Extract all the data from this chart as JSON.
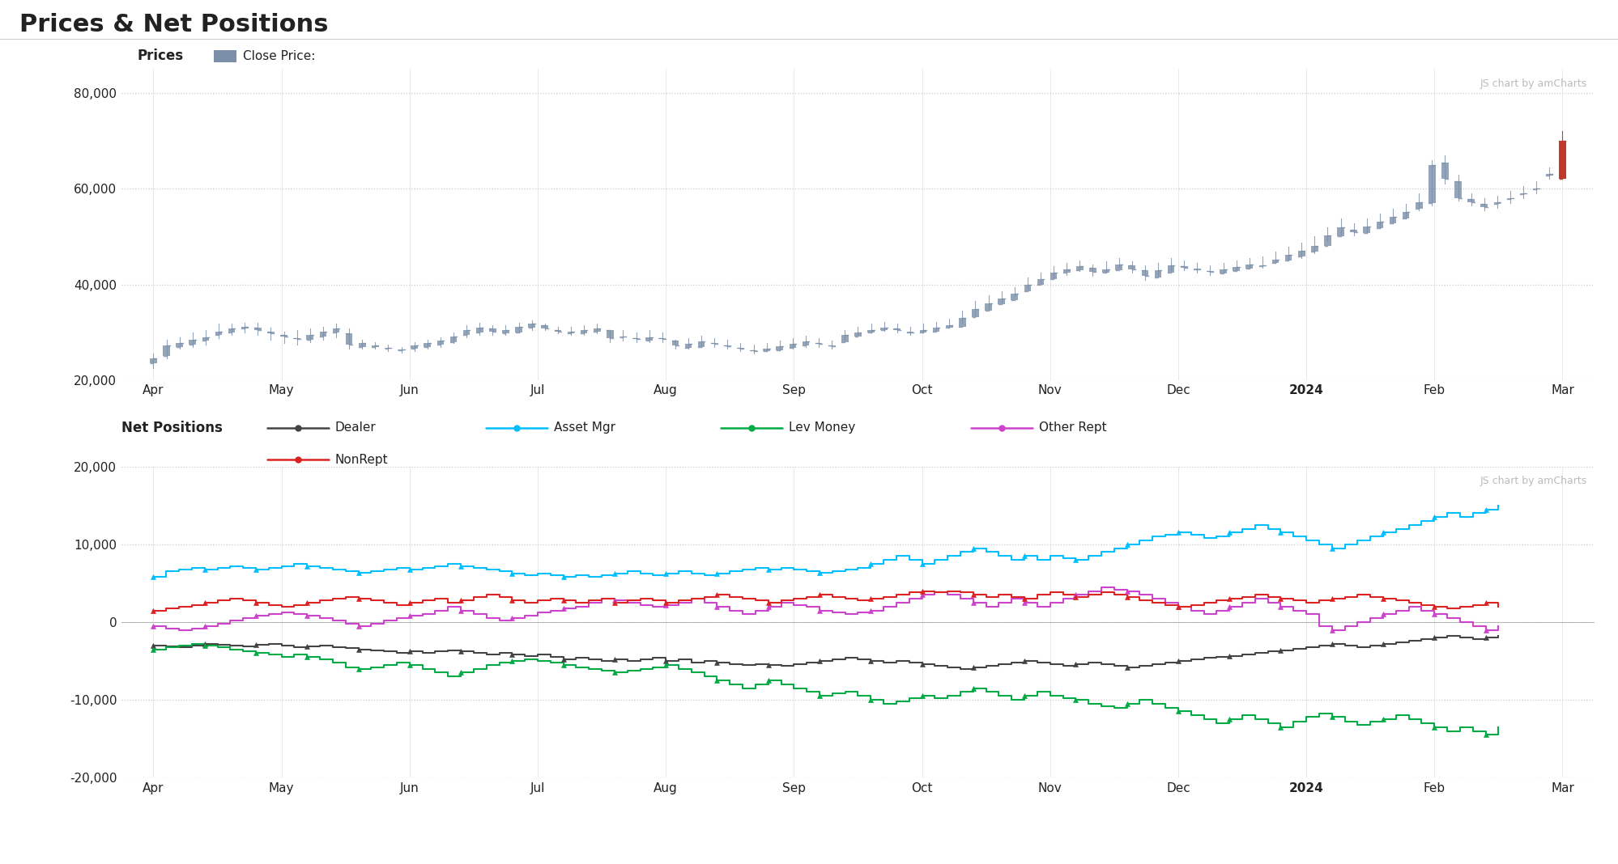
{
  "title": "Prices & Net Positions",
  "background_color": "#ffffff",
  "title_fontsize": 22,
  "top_legend_label": "Prices",
  "top_legend_item": "Close Price:",
  "top_legend_color": "#7b8fa8",
  "watermark": "JS chart by amCharts",
  "x_months": [
    "Apr",
    "May",
    "Jun",
    "Jul",
    "Aug",
    "Sep",
    "Oct",
    "Nov",
    "Dec",
    "2024",
    "Feb",
    "Mar"
  ],
  "x_months_bold": [
    "2024"
  ],
  "price_ylim": [
    20000,
    85000
  ],
  "price_yticks": [
    20000,
    40000,
    60000,
    80000
  ],
  "price_close": [
    24500,
    27200,
    27800,
    28500,
    29000,
    30200,
    30800,
    31200,
    30500,
    29800,
    29200,
    28600,
    29500,
    30200,
    30800,
    27500,
    27800,
    27200,
    26800,
    26400,
    27200,
    27800,
    28200,
    29100,
    30500,
    31000,
    30200,
    30500,
    31200,
    31800,
    30800,
    30200,
    30100,
    30500,
    30800,
    28800,
    29100,
    28600,
    29000,
    28600,
    27200,
    27600,
    28100,
    27600,
    27100,
    26600,
    26100,
    26600,
    27100,
    27600,
    28100,
    27600,
    27100,
    29500,
    30000,
    30500,
    31000,
    30500,
    30000,
    30500,
    31000,
    31500,
    33000,
    34800,
    36000,
    37000,
    38000,
    40000,
    41200,
    42500,
    43200,
    43800,
    42600,
    43200,
    44100,
    43200,
    41800,
    43000,
    44000,
    43500,
    43100,
    42600,
    43100,
    43600,
    44100,
    44000,
    45200,
    46200,
    47000,
    48100,
    50200,
    52000,
    51000,
    52100,
    53100,
    54100,
    55100,
    57200,
    65000,
    62000,
    58100,
    57100,
    56100,
    57100,
    58100,
    59100,
    60100,
    63100,
    70000
  ],
  "price_open": [
    23500,
    25000,
    27000,
    27500,
    28200,
    29500,
    30000,
    30800,
    31000,
    30200,
    29500,
    28800,
    28500,
    29200,
    30000,
    29800,
    27000,
    27000,
    26500,
    26200,
    26500,
    27000,
    27500,
    28000,
    29500,
    30000,
    30800,
    29800,
    30000,
    31000,
    31500,
    30500,
    29800,
    29800,
    30200,
    30500,
    29000,
    28800,
    28200,
    28800,
    28200,
    26800,
    27000,
    27800,
    27200,
    26800,
    26200,
    26000,
    26300,
    26800,
    27300,
    27800,
    27300,
    28000,
    29200,
    30000,
    30500,
    30800,
    30000,
    30000,
    30200,
    31000,
    31200,
    33200,
    34500,
    35800,
    36800,
    38500,
    40000,
    41200,
    42500,
    43000,
    43500,
    42400,
    43000,
    44000,
    43000,
    41500,
    42500,
    43800,
    43200,
    42800,
    42300,
    42800,
    43300,
    43800,
    44500,
    45000,
    45800,
    46800,
    48000,
    50000,
    51500,
    50800,
    51800,
    52800,
    53800,
    55800,
    57000,
    65500,
    61500,
    57800,
    56800,
    56800,
    57800,
    58800,
    59800,
    62800,
    62000
  ],
  "price_high": [
    25500,
    28500,
    29000,
    30000,
    30500,
    31800,
    31800,
    32000,
    32000,
    31000,
    30200,
    30500,
    30800,
    31200,
    31800,
    30800,
    28500,
    28000,
    27500,
    27000,
    28000,
    28500,
    29000,
    30000,
    31500,
    32000,
    31500,
    31500,
    32000,
    32500,
    31800,
    31200,
    31200,
    31500,
    31800,
    30200,
    30500,
    30000,
    30500,
    30000,
    28500,
    28800,
    29300,
    28800,
    28500,
    27800,
    27500,
    27800,
    28300,
    28800,
    29300,
    28800,
    28300,
    30500,
    31200,
    31800,
    32200,
    31800,
    31200,
    31800,
    32200,
    32800,
    34500,
    36500,
    37800,
    38500,
    39500,
    41500,
    42500,
    43800,
    44500,
    45000,
    44200,
    44800,
    45500,
    44800,
    44000,
    44500,
    45500,
    45000,
    44500,
    44000,
    44500,
    45000,
    45500,
    45800,
    46800,
    47800,
    48800,
    50000,
    52000,
    53800,
    52800,
    53800,
    54800,
    55800,
    56800,
    59000,
    66000,
    67000,
    63000,
    59000,
    58000,
    58500,
    59500,
    60500,
    61500,
    64500,
    72000
  ],
  "price_low": [
    22500,
    24500,
    26500,
    27000,
    27500,
    28800,
    29500,
    30000,
    29500,
    28500,
    27800,
    27500,
    28000,
    28500,
    29000,
    26500,
    26500,
    26500,
    26000,
    25800,
    26000,
    26500,
    27000,
    27800,
    29000,
    29500,
    29500,
    29500,
    30000,
    30500,
    30500,
    29800,
    29500,
    29500,
    29800,
    28000,
    28200,
    28000,
    28000,
    28000,
    26500,
    26500,
    27000,
    27000,
    26500,
    26000,
    25500,
    26000,
    26200,
    26500,
    27000,
    27000,
    26500,
    28500,
    29500,
    30000,
    30300,
    30000,
    29500,
    30000,
    30500,
    31000,
    32000,
    33500,
    34800,
    36200,
    37500,
    39000,
    40200,
    41500,
    42000,
    42800,
    41800,
    42500,
    43500,
    42500,
    41000,
    42000,
    43000,
    43000,
    42500,
    42000,
    42500,
    43000,
    43500,
    43500,
    44500,
    45000,
    45500,
    46500,
    49000,
    50500,
    50200,
    50800,
    51800,
    52800,
    53800,
    55500,
    56500,
    61000,
    57500,
    56500,
    55500,
    56000,
    57000,
    58000,
    59000,
    62000,
    63000
  ],
  "price_bar_color_normal": "#7b8fa8",
  "price_bar_color_last": "#c0392b",
  "net_ylim": [
    -20000,
    20000
  ],
  "net_yticks": [
    -20000,
    -10000,
    0,
    10000,
    20000
  ],
  "net_x": [
    0,
    0.1,
    0.2,
    0.3,
    0.4,
    0.5,
    0.6,
    0.7,
    0.8,
    0.9,
    1.0,
    1.1,
    1.2,
    1.3,
    1.4,
    1.5,
    1.6,
    1.7,
    1.8,
    1.9,
    2.0,
    2.1,
    2.2,
    2.3,
    2.4,
    2.5,
    2.6,
    2.7,
    2.8,
    2.9,
    3.0,
    3.1,
    3.2,
    3.3,
    3.4,
    3.5,
    3.6,
    3.7,
    3.8,
    3.9,
    4.0,
    4.1,
    4.2,
    4.3,
    4.4,
    4.5,
    4.6,
    4.7,
    4.8,
    4.9,
    5.0,
    5.1,
    5.2,
    5.3,
    5.4,
    5.5,
    5.6,
    5.7,
    5.8,
    5.9,
    6.0,
    6.1,
    6.2,
    6.3,
    6.4,
    6.5,
    6.6,
    6.7,
    6.8,
    6.9,
    7.0,
    7.1,
    7.2,
    7.3,
    7.4,
    7.5,
    7.6,
    7.7,
    7.8,
    7.9,
    8.0,
    8.1,
    8.2,
    8.3,
    8.4,
    8.5,
    8.6,
    8.7,
    8.8,
    8.9,
    9.0,
    9.1,
    9.2,
    9.3,
    9.4,
    9.5,
    9.6,
    9.7,
    9.8,
    9.9,
    10.0,
    10.1,
    10.2,
    10.3,
    10.4,
    10.5
  ],
  "dealer": [
    -3000,
    -3100,
    -3200,
    -3000,
    -2800,
    -2900,
    -3000,
    -3100,
    -2900,
    -2800,
    -3000,
    -3200,
    -3100,
    -3000,
    -3200,
    -3300,
    -3500,
    -3600,
    -3800,
    -4000,
    -3800,
    -4000,
    -3800,
    -3600,
    -3800,
    -4000,
    -4200,
    -4000,
    -4200,
    -4400,
    -4200,
    -4500,
    -4800,
    -4600,
    -4800,
    -5000,
    -4800,
    -5000,
    -4800,
    -4600,
    -5000,
    -4800,
    -5200,
    -5000,
    -5200,
    -5400,
    -5500,
    -5400,
    -5500,
    -5600,
    -5400,
    -5200,
    -5000,
    -4800,
    -4600,
    -4800,
    -5000,
    -5200,
    -5000,
    -5200,
    -5400,
    -5600,
    -5800,
    -6000,
    -5800,
    -5600,
    -5400,
    -5200,
    -5000,
    -5200,
    -5400,
    -5600,
    -5400,
    -5200,
    -5400,
    -5600,
    -5800,
    -5600,
    -5400,
    -5200,
    -5000,
    -4800,
    -4600,
    -4500,
    -4400,
    -4200,
    -4000,
    -3800,
    -3600,
    -3400,
    -3200,
    -3000,
    -2800,
    -3000,
    -3200,
    -3000,
    -2800,
    -2600,
    -2400,
    -2200,
    -2000,
    -1800,
    -2000,
    -2200,
    -2000,
    -1800
  ],
  "asset_mgr": [
    5800,
    6500,
    6800,
    7000,
    6800,
    7000,
    7200,
    7000,
    6800,
    7000,
    7200,
    7500,
    7200,
    7000,
    6800,
    6500,
    6300,
    6500,
    6800,
    7000,
    6800,
    7000,
    7200,
    7500,
    7200,
    7000,
    6800,
    6500,
    6200,
    6000,
    6200,
    6000,
    5800,
    6000,
    5800,
    6000,
    6200,
    6500,
    6200,
    6000,
    6200,
    6500,
    6200,
    6000,
    6200,
    6500,
    6800,
    7000,
    6800,
    7000,
    6800,
    6500,
    6300,
    6500,
    6800,
    7000,
    7500,
    8000,
    8500,
    8000,
    7500,
    8000,
    8500,
    9000,
    9500,
    9000,
    8500,
    8000,
    8500,
    8000,
    8500,
    8200,
    8000,
    8500,
    9000,
    9500,
    10000,
    10500,
    11000,
    11200,
    11500,
    11200,
    10800,
    11000,
    11500,
    12000,
    12500,
    12000,
    11500,
    11000,
    10500,
    10000,
    9500,
    10000,
    10500,
    11000,
    11500,
    12000,
    12500,
    13000,
    13500,
    14000,
    13500,
    14000,
    14500,
    15000
  ],
  "lev_money": [
    -3500,
    -3200,
    -3000,
    -2800,
    -3000,
    -3200,
    -3500,
    -3800,
    -4000,
    -4200,
    -4500,
    -4200,
    -4500,
    -4800,
    -5200,
    -5800,
    -6000,
    -5800,
    -5500,
    -5200,
    -5500,
    -6000,
    -6500,
    -7000,
    -6500,
    -6000,
    -5500,
    -5200,
    -5000,
    -4800,
    -5000,
    -5200,
    -5500,
    -5800,
    -6000,
    -6200,
    -6500,
    -6200,
    -6000,
    -5800,
    -5500,
    -6000,
    -6500,
    -7000,
    -7500,
    -8000,
    -8500,
    -8000,
    -7500,
    -8000,
    -8500,
    -9000,
    -9500,
    -9200,
    -9000,
    -9500,
    -10000,
    -10500,
    -10200,
    -9800,
    -9500,
    -9800,
    -9500,
    -9000,
    -8500,
    -9000,
    -9500,
    -10000,
    -9500,
    -9000,
    -9500,
    -9800,
    -10000,
    -10500,
    -10800,
    -11000,
    -10500,
    -10000,
    -10500,
    -11000,
    -11500,
    -12000,
    -12500,
    -13000,
    -12500,
    -12000,
    -12500,
    -13000,
    -13500,
    -12800,
    -12200,
    -11800,
    -12200,
    -12800,
    -13200,
    -12800,
    -12500,
    -12000,
    -12500,
    -13000,
    -13500,
    -14000,
    -13500,
    -14000,
    -14500,
    -13500
  ],
  "other_rept": [
    -500,
    -800,
    -1000,
    -800,
    -500,
    -200,
    200,
    500,
    800,
    1000,
    1200,
    1000,
    800,
    500,
    200,
    -200,
    -500,
    -200,
    200,
    500,
    800,
    1000,
    1500,
    2000,
    1500,
    1000,
    500,
    200,
    500,
    800,
    1200,
    1500,
    1800,
    2000,
    2500,
    3000,
    2800,
    2500,
    2200,
    2000,
    2200,
    2500,
    3000,
    2500,
    2000,
    1500,
    1000,
    1500,
    2000,
    2500,
    2200,
    2000,
    1500,
    1200,
    1000,
    1200,
    1500,
    2000,
    2500,
    3000,
    3500,
    3800,
    3500,
    3000,
    2500,
    2000,
    2500,
    3000,
    2500,
    2000,
    2500,
    3000,
    3500,
    4000,
    4500,
    4200,
    4000,
    3500,
    3000,
    2500,
    2000,
    1500,
    1000,
    1500,
    2000,
    2500,
    3000,
    2500,
    2000,
    1500,
    1000,
    -500,
    -1000,
    -500,
    0,
    500,
    1000,
    1500,
    2000,
    1500,
    1000,
    500,
    0,
    -500,
    -1000,
    -500
  ],
  "nonrept": [
    1500,
    1800,
    2000,
    2200,
    2500,
    2800,
    3000,
    2800,
    2500,
    2200,
    2000,
    2200,
    2500,
    2800,
    3000,
    3200,
    3000,
    2800,
    2500,
    2200,
    2500,
    2800,
    3000,
    2500,
    2800,
    3200,
    3500,
    3200,
    2800,
    2500,
    2800,
    3000,
    2800,
    2500,
    2800,
    3000,
    2500,
    2800,
    3000,
    2800,
    2500,
    2800,
    3000,
    3200,
    3500,
    3200,
    3000,
    2800,
    2500,
    2800,
    3000,
    3200,
    3500,
    3200,
    3000,
    2800,
    3000,
    3200,
    3500,
    3800,
    4000,
    3800,
    4000,
    3800,
    3500,
    3200,
    3500,
    3200,
    3000,
    3500,
    3800,
    3500,
    3200,
    3500,
    3800,
    3500,
    3200,
    2800,
    2500,
    2200,
    2000,
    2200,
    2500,
    2800,
    3000,
    3200,
    3500,
    3200,
    3000,
    2800,
    2500,
    2800,
    3000,
    3200,
    3500,
    3200,
    3000,
    2800,
    2500,
    2200,
    2000,
    1800,
    2000,
    2200,
    2500,
    2000
  ],
  "line_colors": {
    "dealer": "#444444",
    "asset_mgr": "#00bfff",
    "lev_money": "#00aa44",
    "other_rept": "#cc44cc",
    "nonrept": "#dd2222"
  },
  "grid_color": "#cccccc",
  "grid_linestyle": ":",
  "separator_color": "#cccccc",
  "font_color": "#222222",
  "tick_fontsize": 11,
  "label_fontsize": 12
}
